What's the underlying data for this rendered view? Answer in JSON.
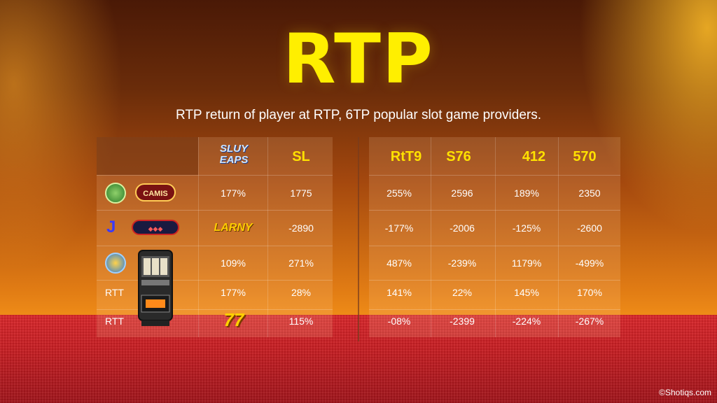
{
  "title": "RTP",
  "subtitle": "RTP return of player at RTP, 6TP popular slot game providers.",
  "headers": {
    "logo": "SLUY EAPS",
    "c1": "SL",
    "c2": "RtT9",
    "c3": "S76",
    "c4": "412",
    "c5": "570"
  },
  "rows": [
    {
      "label": "",
      "logo_text": "CAMIS",
      "mid": "177%",
      "c1": "1775",
      "c2": "255%",
      "c3": "2596",
      "c4": "189%",
      "c5": "2350"
    },
    {
      "label": "J",
      "logo_text": "LARNY",
      "mid": "",
      "c1": "-2890",
      "c2": "-177%",
      "c3": "-2006",
      "c4": "-125%",
      "c5": "-2600"
    },
    {
      "label": "",
      "logo_text": "",
      "mid": "109%",
      "c1": "271%",
      "c2": "487%",
      "c3": "-239%",
      "c4": "1179%",
      "c5": "-499%"
    },
    {
      "label": "RTT",
      "logo_text": "",
      "mid": "177%",
      "c1": "28%",
      "c2": "141%",
      "c3": "22%",
      "c4": "145%",
      "c5": "170%"
    },
    {
      "label": "RTT",
      "logo_text": "77",
      "mid": "",
      "c1": "115%",
      "c2": "-08%",
      "c3": "-2399",
      "c4": "-224%",
      "c5": "-267%"
    }
  ],
  "watermark": "©Shotiqs.com",
  "colors": {
    "accent": "#ffe100",
    "floor": "#c61d22"
  }
}
